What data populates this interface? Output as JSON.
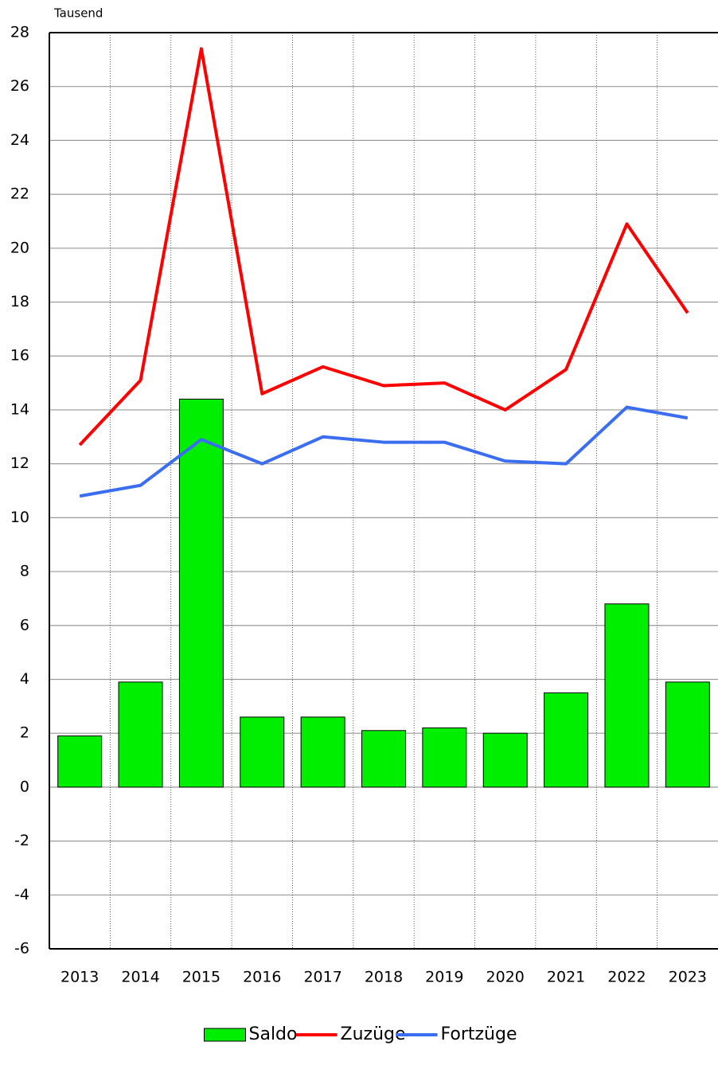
{
  "chart_data": {
    "type": "bar-line",
    "unit_label": "Tausend",
    "categories": [
      "2013",
      "2014",
      "2015",
      "2016",
      "2017",
      "2018",
      "2019",
      "2020",
      "2021",
      "2022",
      "2023"
    ],
    "series": [
      {
        "name": "Saldo",
        "type": "bar",
        "color": "#00ee00",
        "values": [
          1.9,
          3.9,
          14.4,
          2.6,
          2.6,
          2.1,
          2.2,
          2.0,
          3.5,
          6.8,
          3.9
        ]
      },
      {
        "name": "Zuzüge",
        "type": "line",
        "color": "#ff0000",
        "values": [
          12.7,
          15.1,
          27.4,
          14.6,
          15.6,
          14.9,
          15.0,
          14.0,
          15.5,
          20.9,
          17.6
        ]
      },
      {
        "name": "Fortzüge",
        "type": "line",
        "color": "#3a6df0",
        "values": [
          10.8,
          11.2,
          12.9,
          12.0,
          13.0,
          12.8,
          12.8,
          12.1,
          12.0,
          14.1,
          13.7
        ]
      }
    ],
    "ylim": [
      -6,
      28
    ],
    "yticks": [
      -6,
      -4,
      -2,
      0,
      2,
      4,
      6,
      8,
      10,
      12,
      14,
      16,
      18,
      20,
      22,
      24,
      26,
      28
    ],
    "grid": true,
    "legend": "bottom"
  }
}
